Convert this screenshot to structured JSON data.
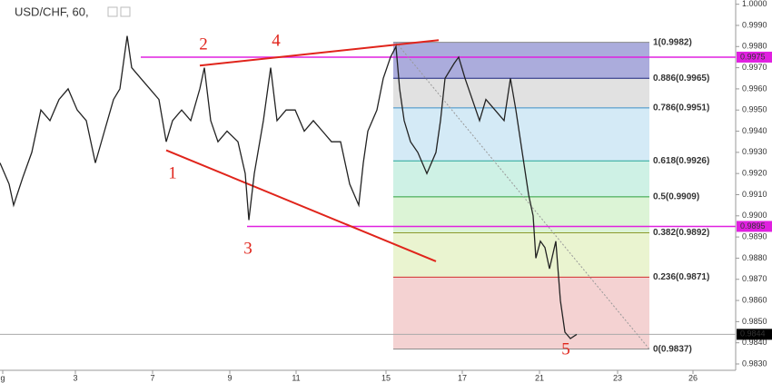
{
  "chart_data": {
    "type": "line",
    "title": "USD/CHF, 60,",
    "color": "#222222",
    "xlim": [
      0,
      810
    ],
    "ylim": [
      0.9827,
      1.0002
    ],
    "xticks": [
      {
        "value": 3,
        "label": "g"
      },
      {
        "value": 83,
        "label": "3"
      },
      {
        "value": 168,
        "label": "7"
      },
      {
        "value": 253,
        "label": "9"
      },
      {
        "value": 326,
        "label": "11"
      },
      {
        "value": 425,
        "label": "15"
      },
      {
        "value": 509,
        "label": "17"
      },
      {
        "value": 594,
        "label": "21"
      },
      {
        "value": 680,
        "label": "23"
      },
      {
        "value": 763,
        "label": "26"
      }
    ],
    "yticks": [
      {
        "value": 1.0,
        "label": "1.0000"
      },
      {
        "value": 0.999,
        "label": "0.9990"
      },
      {
        "value": 0.998,
        "label": "0.9980"
      },
      {
        "value": 0.997,
        "label": "0.9970"
      },
      {
        "value": 0.996,
        "label": "0.9960"
      },
      {
        "value": 0.995,
        "label": "0.9950"
      },
      {
        "value": 0.994,
        "label": "0.9940"
      },
      {
        "value": 0.993,
        "label": "0.9930"
      },
      {
        "value": 0.992,
        "label": "0.9920"
      },
      {
        "value": 0.991,
        "label": "0.9910"
      },
      {
        "value": 0.99,
        "label": "0.9900"
      },
      {
        "value": 0.989,
        "label": "0.9890"
      },
      {
        "value": 0.988,
        "label": "0.9880"
      },
      {
        "value": 0.987,
        "label": "0.9870"
      },
      {
        "value": 0.986,
        "label": "0.9860"
      },
      {
        "value": 0.985,
        "label": "0.9850"
      },
      {
        "value": 0.984,
        "label": "0.9840"
      },
      {
        "value": 0.983,
        "label": "0.9830"
      }
    ],
    "x": [
      0,
      10,
      15,
      25,
      35,
      45,
      55,
      65,
      75,
      85,
      95,
      105,
      115,
      125,
      132,
      140,
      145,
      155,
      165,
      175,
      183,
      190,
      200,
      210,
      220,
      225,
      232,
      240,
      250,
      262,
      270,
      274,
      280,
      290,
      298,
      305,
      315,
      325,
      335,
      345,
      355,
      365,
      375,
      385,
      395,
      400,
      405,
      415,
      422,
      430,
      436,
      440,
      445,
      452,
      460,
      470,
      480,
      485,
      490,
      500,
      505,
      512,
      520,
      528,
      535,
      545,
      555,
      562,
      568,
      575,
      582,
      587,
      590,
      595,
      600,
      605,
      612,
      617,
      622,
      628,
      635
    ],
    "values": [
      0.9925,
      0.9915,
      0.9905,
      0.9918,
      0.993,
      0.995,
      0.9945,
      0.9955,
      0.996,
      0.995,
      0.9945,
      0.9925,
      0.994,
      0.9955,
      0.996,
      0.9985,
      0.997,
      0.9965,
      0.996,
      0.9955,
      0.9935,
      0.9945,
      0.995,
      0.9945,
      0.996,
      0.997,
      0.9945,
      0.9935,
      0.994,
      0.9935,
      0.992,
      0.9898,
      0.992,
      0.9945,
      0.997,
      0.9945,
      0.995,
      0.995,
      0.994,
      0.9945,
      0.994,
      0.9935,
      0.9935,
      0.9915,
      0.9905,
      0.9925,
      0.994,
      0.995,
      0.9965,
      0.9975,
      0.998,
      0.996,
      0.9945,
      0.9935,
      0.993,
      0.992,
      0.993,
      0.9945,
      0.9965,
      0.9972,
      0.9975,
      0.9965,
      0.9955,
      0.9945,
      0.9955,
      0.995,
      0.9945,
      0.9965,
      0.995,
      0.993,
      0.991,
      0.99,
      0.988,
      0.9888,
      0.9885,
      0.9875,
      0.9888,
      0.986,
      0.9845,
      0.9842,
      0.9844
    ],
    "fib_range_x": [
      433,
      715
    ],
    "fib_levels": [
      {
        "price": 0.9982,
        "label": "1(0.9982)",
        "color": "#8a8a8a",
        "fill": "#9c9dd6"
      },
      {
        "price": 0.9965,
        "label": "0.886(0.9965)",
        "color": "#1a237e",
        "fill": "#dcdcdc"
      },
      {
        "price": 0.9951,
        "label": "0.786(0.9951)",
        "color": "#3d8fc7",
        "fill": "#cde6f4"
      },
      {
        "price": 0.9926,
        "label": "0.618(0.9926)",
        "color": "#26a69a",
        "fill": "#c5efe0"
      },
      {
        "price": 0.9909,
        "label": "0.5(0.9909)",
        "color": "#2e9e3c",
        "fill": "#d6f2cf"
      },
      {
        "price": 0.9892,
        "label": "0.382(0.9892)",
        "color": "#8c9a2c",
        "fill": "#e6f2c8"
      },
      {
        "price": 0.9871,
        "label": "0.236(0.9871)",
        "color": "#d32f2f",
        "fill": "#f2caca"
      },
      {
        "price": 0.9837,
        "label": "0(0.9837)",
        "color": "#8a8a8a"
      }
    ],
    "trendlines": [
      {
        "x": [
          220,
          483
        ],
        "values": [
          0.9971,
          0.9983
        ],
        "color": "#e0241b"
      },
      {
        "x": [
          183,
          480
        ],
        "values": [
          0.9931,
          0.98785
        ],
        "color": "#e0241b"
      },
      {
        "x": [
          436,
          715
        ],
        "values": [
          0.9982,
          0.9837
        ],
        "color": "#999999"
      }
    ],
    "hlines": [
      {
        "x": [
          155,
          810
        ],
        "value": 0.9975,
        "label": "0.9975",
        "color": "#e020e0"
      },
      {
        "x": [
          272,
          810
        ],
        "value": 0.9895,
        "label": "0.9895",
        "color": "#e020e0"
      },
      {
        "x": [
          0,
          810
        ],
        "value": 0.9844,
        "label": "0.9844",
        "color": "#000000"
      }
    ],
    "annotations": [
      "1",
      "2",
      "3",
      "4",
      "5"
    ]
  }
}
